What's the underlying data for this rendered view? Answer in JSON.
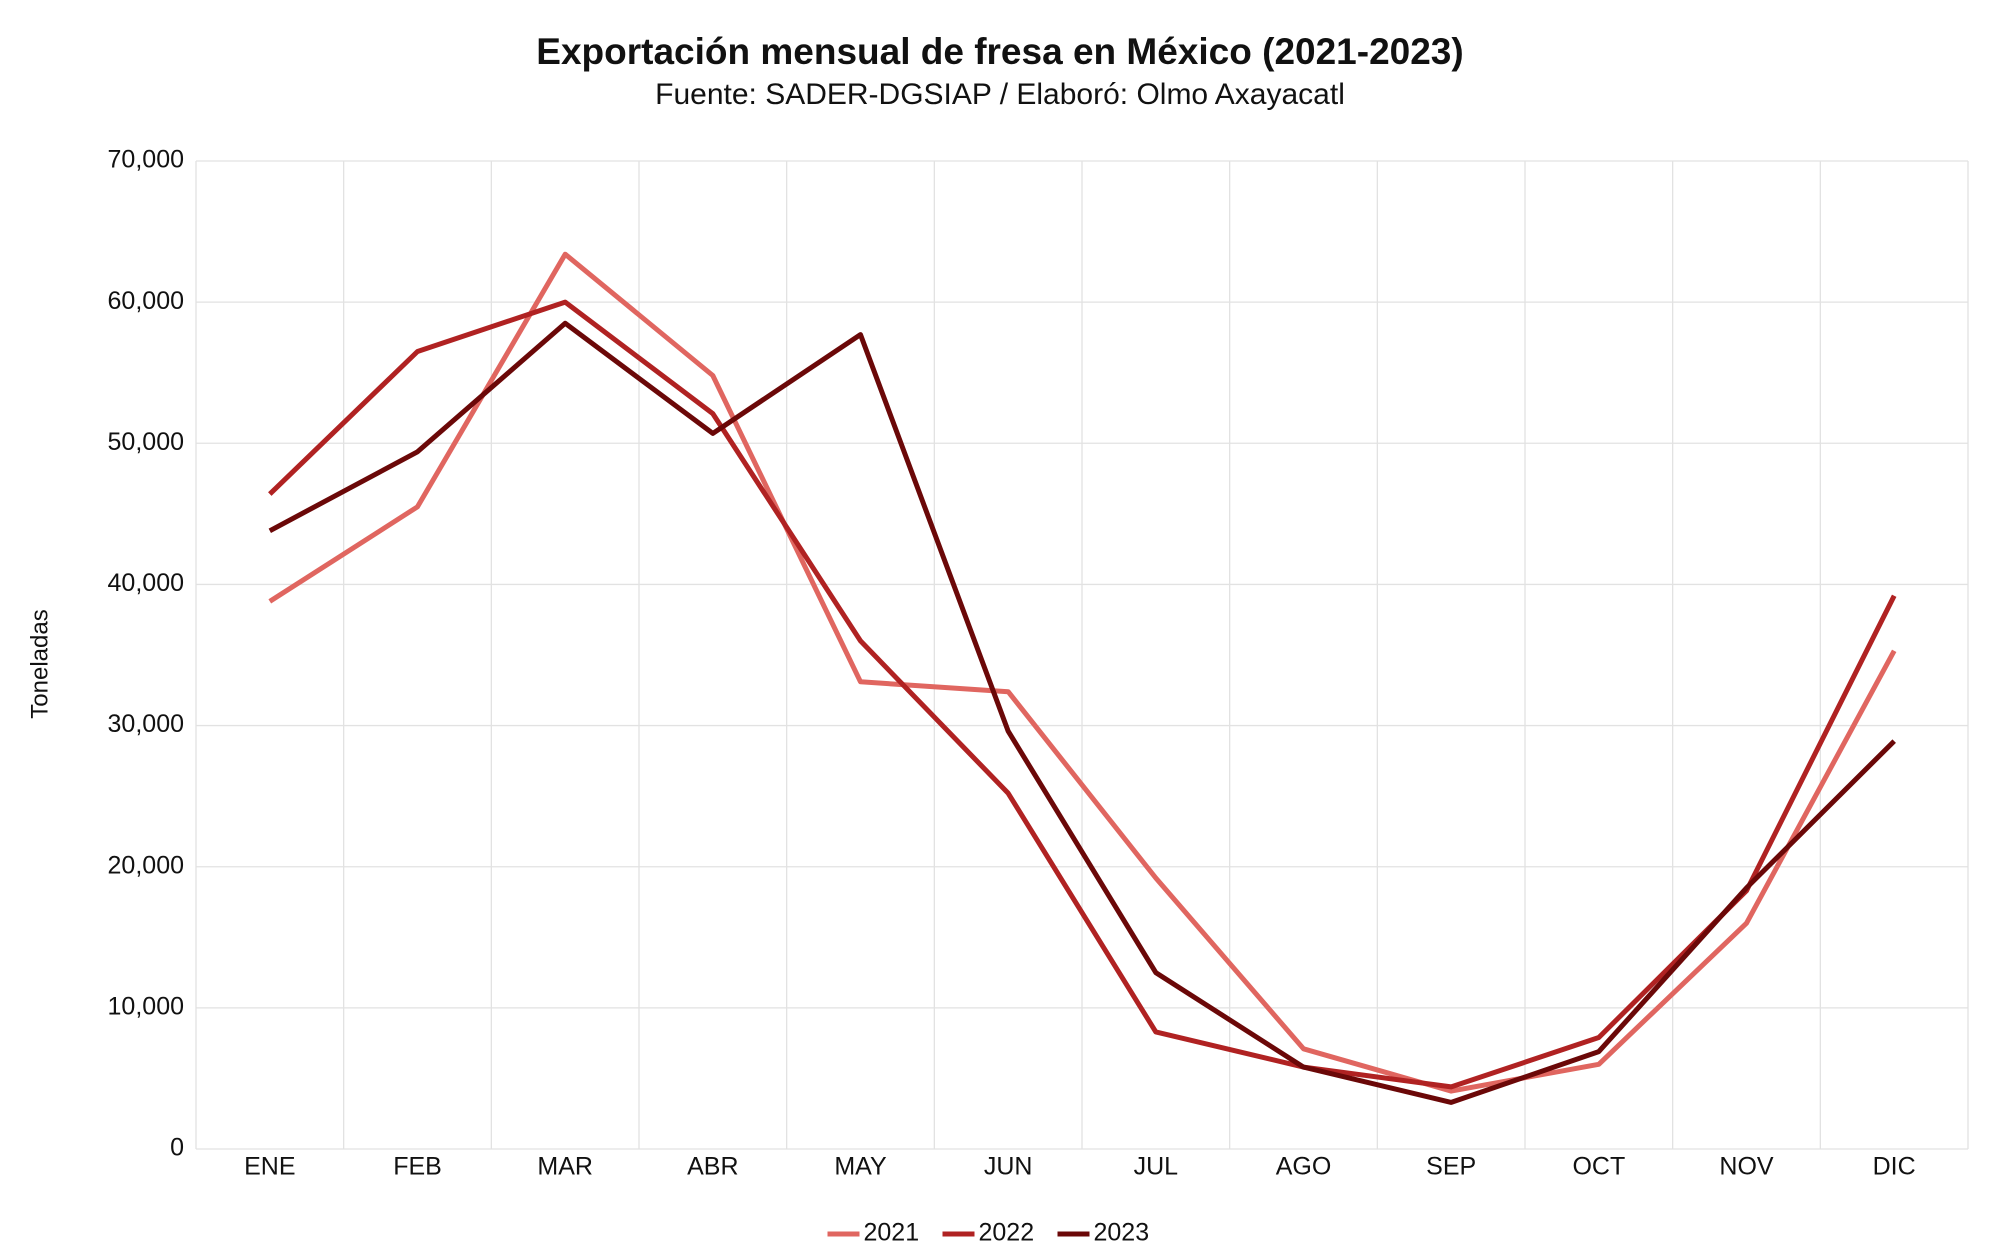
{
  "chart_data": {
    "type": "line",
    "title": "Exportación mensual de fresa en México (2021-2023)",
    "subtitle": "Fuente: SADER-DGSIAP / Elaboró: Olmo Axayacatl",
    "y_label": "Toneladas",
    "categories": [
      "ENE",
      "FEB",
      "MAR",
      "ABR",
      "MAY",
      "JUN",
      "JUL",
      "AGO",
      "SEP",
      "OCT",
      "NOV",
      "DIC"
    ],
    "series": [
      {
        "name": "2021",
        "color": "#e06660",
        "values": [
          38800,
          45500,
          63400,
          54800,
          33100,
          32400,
          19200,
          7100,
          4100,
          6000,
          16000,
          35300
        ]
      },
      {
        "name": "2022",
        "color": "#b02222",
        "values": [
          46400,
          56500,
          60000,
          52100,
          36000,
          25200,
          8300,
          5800,
          4400,
          7900,
          18300,
          39200
        ]
      },
      {
        "name": "2023",
        "color": "#6b0808",
        "values": [
          43800,
          49400,
          58500,
          50700,
          57700,
          29600,
          12500,
          5800,
          3300,
          6900,
          18500,
          28900
        ]
      }
    ],
    "ylim": [
      0,
      70000
    ],
    "yticks": [
      0,
      {
        "value": 10000,
        "label": "10,000"
      },
      {
        "value": 20000,
        "label": "20,000"
      },
      {
        "value": 30000,
        "label": "30,000"
      },
      {
        "value": 40000,
        "label": "40,000"
      },
      {
        "value": 50000,
        "label": "50,000"
      },
      {
        "value": 60000,
        "label": "60,000"
      },
      {
        "value": 70000,
        "label": "70,000"
      }
    ],
    "grid": true,
    "legend": "bottom"
  }
}
